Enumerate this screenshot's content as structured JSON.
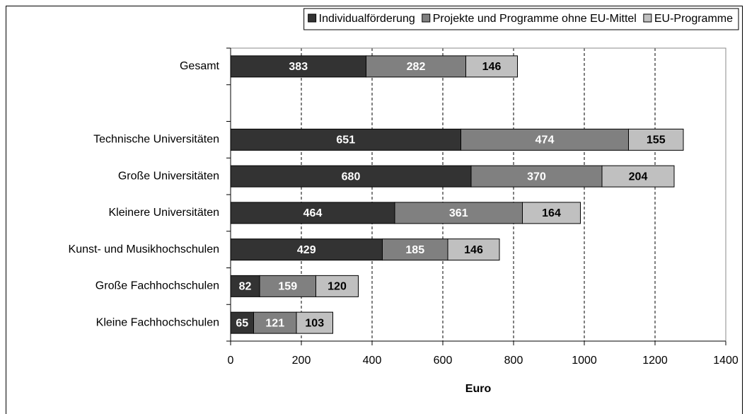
{
  "chart_data": {
    "type": "stacked-barh",
    "categories": [
      "Gesamt",
      null,
      "Technische Universitäten",
      "Große Universitäten",
      "Kleinere Universitäten",
      "Kunst- und Musikhochschulen",
      "Große Fachhochschulen",
      "Kleine Fachhochschulen"
    ],
    "series": [
      {
        "name": "Individualförderung",
        "color": "#333333",
        "values": [
          383,
          null,
          651,
          680,
          464,
          429,
          82,
          65
        ]
      },
      {
        "name": "Projekte und Programme ohne EU-Mittel",
        "color": "#808080",
        "values": [
          282,
          null,
          474,
          370,
          361,
          185,
          159,
          121
        ]
      },
      {
        "name": "EU-Programme",
        "color": "#c0c0c0",
        "values": [
          146,
          null,
          155,
          204,
          164,
          146,
          120,
          103
        ]
      }
    ],
    "xlabel": "Euro",
    "xlim": [
      0,
      1400
    ],
    "xticks": [
      0,
      200,
      400,
      600,
      800,
      1000,
      1200,
      1400
    ],
    "grid": true,
    "legend": "top-right"
  }
}
